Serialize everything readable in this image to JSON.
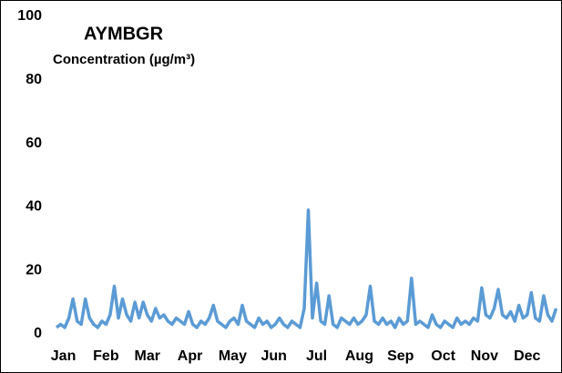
{
  "chart_data": {
    "type": "line",
    "title": "AYMBGR",
    "subtitle": "Concentration (µg/m³)",
    "x": [
      1,
      4,
      7,
      10,
      13,
      16,
      19,
      22,
      25,
      28,
      31,
      34,
      37,
      40,
      43,
      46,
      49,
      52,
      55,
      58,
      61,
      64,
      67,
      70,
      73,
      76,
      79,
      82,
      85,
      88,
      91,
      94,
      97,
      100,
      103,
      106,
      109,
      112,
      115,
      118,
      121,
      124,
      127,
      130,
      133,
      136,
      139,
      142,
      145,
      148,
      151,
      154,
      157,
      160,
      163,
      166,
      169,
      172,
      175,
      178,
      181,
      184,
      187,
      190,
      193,
      196,
      199,
      202,
      205,
      208,
      211,
      214,
      217,
      220,
      223,
      226,
      229,
      232,
      235,
      238,
      241,
      244,
      247,
      250,
      253,
      256,
      259,
      262,
      265,
      268,
      271,
      274,
      277,
      280,
      283,
      286,
      289,
      292,
      295,
      298,
      301,
      304,
      307,
      310,
      313,
      316,
      319,
      322,
      325,
      328,
      331,
      334,
      337,
      340,
      343,
      346,
      349,
      352,
      355,
      358,
      361,
      364
    ],
    "series": [
      {
        "name": "AYMBGR",
        "color": "#5b9bd5",
        "values": [
          2,
          3,
          2,
          5,
          11,
          4,
          3,
          11,
          5,
          3,
          2,
          4,
          3,
          6,
          15,
          5,
          11,
          6,
          4,
          10,
          5,
          10,
          6,
          4,
          8,
          5,
          6,
          4,
          3,
          5,
          4,
          3,
          7,
          3,
          2,
          4,
          3,
          5,
          9,
          4,
          3,
          2,
          4,
          5,
          3,
          9,
          4,
          3,
          2,
          5,
          3,
          4,
          2,
          3,
          5,
          3,
          2,
          4,
          3,
          2,
          8,
          39,
          5,
          16,
          4,
          3,
          12,
          3,
          2,
          5,
          4,
          3,
          5,
          3,
          4,
          6,
          15,
          4,
          3,
          5,
          3,
          4,
          2,
          5,
          3,
          4,
          17.5,
          3,
          4,
          3,
          2,
          6,
          3,
          2,
          4,
          3,
          2,
          5,
          3,
          4,
          3,
          5,
          4,
          14.5,
          6,
          5,
          8,
          14,
          6,
          5,
          7,
          4,
          9,
          5,
          6,
          13,
          5,
          4,
          12,
          6,
          4,
          8
        ]
      }
    ],
    "xlim": [
      1,
      365
    ],
    "xticks": [
      {
        "value": 6,
        "label": "Jan"
      },
      {
        "value": 37,
        "label": "Feb"
      },
      {
        "value": 67,
        "label": "Mar"
      },
      {
        "value": 98,
        "label": "Apr"
      },
      {
        "value": 129,
        "label": "May"
      },
      {
        "value": 159,
        "label": "Jun"
      },
      {
        "value": 190,
        "label": "Jul"
      },
      {
        "value": 221,
        "label": "Aug"
      },
      {
        "value": 251,
        "label": "Sep"
      },
      {
        "value": 282,
        "label": "Oct"
      },
      {
        "value": 312,
        "label": "Nov"
      },
      {
        "value": 343,
        "label": "Dec"
      }
    ],
    "ylim": [
      0,
      100
    ],
    "yticks": [
      0,
      20,
      40,
      60,
      80,
      100
    ]
  }
}
